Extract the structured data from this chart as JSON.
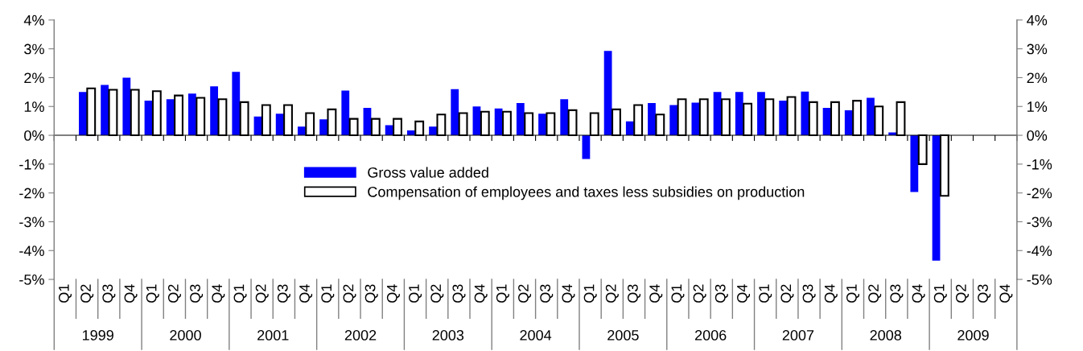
{
  "chart_data": {
    "type": "bar",
    "categories": [
      "Q1",
      "Q2",
      "Q3",
      "Q4",
      "Q1",
      "Q2",
      "Q3",
      "Q4",
      "Q1",
      "Q2",
      "Q3",
      "Q4",
      "Q1",
      "Q2",
      "Q3",
      "Q4",
      "Q1",
      "Q2",
      "Q3",
      "Q4",
      "Q1",
      "Q2",
      "Q3",
      "Q4",
      "Q1",
      "Q2",
      "Q3",
      "Q4",
      "Q1",
      "Q2",
      "Q3",
      "Q4",
      "Q1",
      "Q2",
      "Q3",
      "Q4",
      "Q1",
      "Q2",
      "Q3",
      "Q4",
      "Q1",
      "Q2",
      "Q3",
      "Q4"
    ],
    "annotations": [
      "1999",
      "2000",
      "2001",
      "2002",
      "2003",
      "2004",
      "2005",
      "2006",
      "2007",
      "2008",
      "2009"
    ],
    "series": [
      {
        "name": "Gross value added",
        "color": "#0000ff",
        "values": [
          null,
          1.5,
          1.75,
          2.0,
          1.2,
          1.25,
          1.45,
          1.7,
          2.2,
          0.65,
          0.75,
          0.3,
          0.55,
          1.55,
          0.95,
          0.35,
          0.17,
          0.3,
          1.6,
          1.0,
          0.93,
          1.12,
          0.75,
          1.25,
          -0.82,
          2.93,
          0.48,
          1.12,
          1.05,
          1.13,
          1.5,
          1.5,
          1.5,
          1.2,
          1.52,
          0.95,
          0.87,
          1.3,
          0.1,
          -1.97,
          -4.35,
          null,
          null,
          null
        ]
      },
      {
        "name": "Compensation of employees and taxes less subsidies on production",
        "color": "#ffffff",
        "values": [
          null,
          1.63,
          1.58,
          1.58,
          1.53,
          1.38,
          1.3,
          1.25,
          1.15,
          1.05,
          1.05,
          0.77,
          0.9,
          0.57,
          0.57,
          0.57,
          0.48,
          0.72,
          0.77,
          0.82,
          0.82,
          0.77,
          0.77,
          0.87,
          0.77,
          0.9,
          1.05,
          0.72,
          1.25,
          1.25,
          1.25,
          1.1,
          1.25,
          1.33,
          1.15,
          1.15,
          1.2,
          1.0,
          1.15,
          -1.0,
          -2.1,
          null,
          null,
          null
        ]
      }
    ],
    "ylim": [
      -5,
      4
    ],
    "yticks": [
      {
        "value": -5,
        "label": "-5%"
      },
      {
        "value": -4,
        "label": "-4%"
      },
      {
        "value": -3,
        "label": "-3%"
      },
      {
        "value": -2,
        "label": "-2%"
      },
      {
        "value": -1,
        "label": "-1%"
      },
      {
        "value": 0,
        "label": "0%"
      },
      {
        "value": 1,
        "label": "1%"
      },
      {
        "value": 2,
        "label": "2%"
      },
      {
        "value": 3,
        "label": "3%"
      },
      {
        "value": 4,
        "label": "4%"
      }
    ],
    "y2lim": [
      -5,
      4
    ],
    "y2ticks": [
      {
        "value": -5,
        "label": "-5%"
      },
      {
        "value": -4,
        "label": "-4%"
      },
      {
        "value": -3,
        "label": "-3%"
      },
      {
        "value": -2,
        "label": "-2%"
      },
      {
        "value": -1,
        "label": "-1%"
      },
      {
        "value": 0,
        "label": "0%"
      },
      {
        "value": 1,
        "label": "1%"
      },
      {
        "value": 2,
        "label": "2%"
      },
      {
        "value": 3,
        "label": "3%"
      },
      {
        "value": 4,
        "label": "4%"
      }
    ],
    "legend": "center"
  }
}
